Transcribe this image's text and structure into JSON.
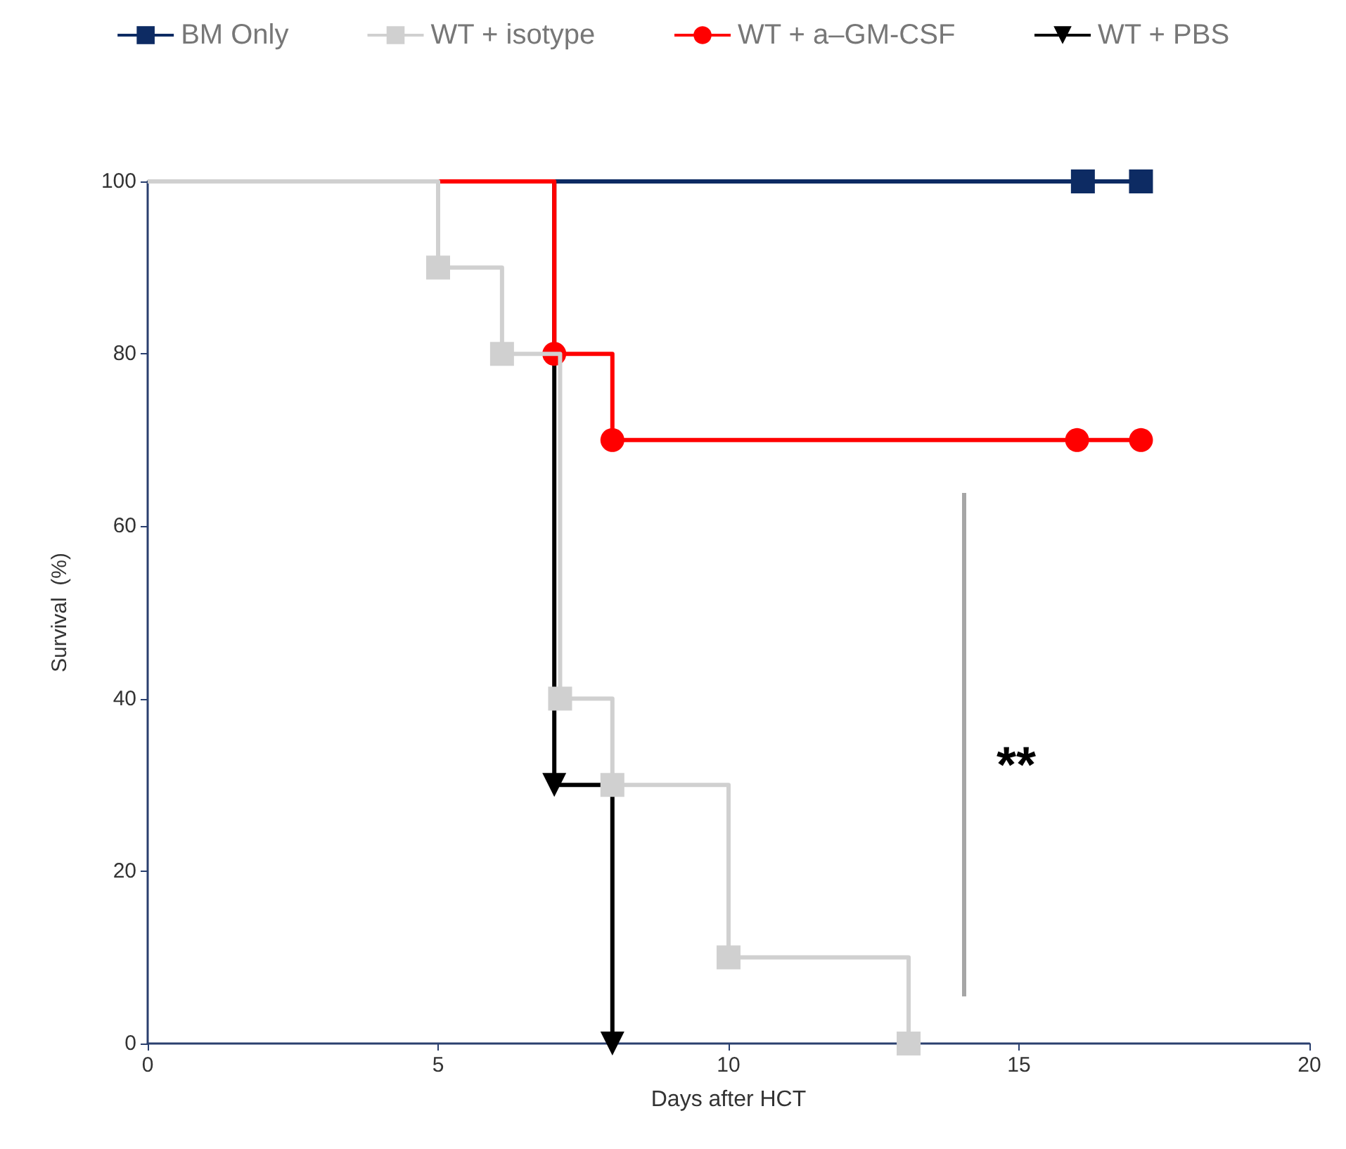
{
  "chart_data": {
    "type": "step",
    "xlabel": "Days after HCT",
    "ylabel": "Survival  (%)",
    "xlim": [
      0,
      20
    ],
    "xticks": [
      0,
      5,
      10,
      15,
      20
    ],
    "ylim": [
      0,
      100
    ],
    "yticks": [
      0,
      20,
      40,
      60,
      80,
      100
    ],
    "grid": false,
    "legend": "top",
    "series": [
      {
        "name": "BM Only",
        "color": "#0d2b63",
        "marker": "square",
        "x": [
          7,
          16.1,
          17.1
        ],
        "values": [
          100,
          100,
          100
        ]
      },
      {
        "name": "WT + isotype",
        "color": "#d0d0d0",
        "marker": "square",
        "x": [
          0,
          5,
          6.1,
          7.1,
          8,
          10,
          13.1
        ],
        "values": [
          100,
          90,
          80,
          40,
          30,
          10,
          0
        ]
      },
      {
        "name": "WT + a–GM-CSF",
        "color": "#ff0000",
        "marker": "circle",
        "x": [
          5,
          7,
          8,
          16,
          17.1
        ],
        "values": [
          100,
          80,
          70,
          70,
          70
        ]
      },
      {
        "name": "WT + PBS",
        "color": "#000000",
        "marker": "triangle-down",
        "x": [
          7,
          7,
          8
        ],
        "values": [
          100,
          30,
          0
        ]
      }
    ],
    "annotations": [
      "**"
    ]
  }
}
